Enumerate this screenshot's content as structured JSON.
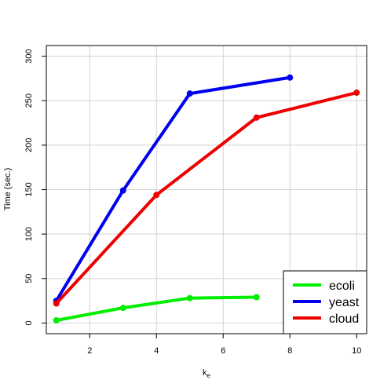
{
  "chart_data": {
    "type": "line",
    "title": "",
    "xlabel": "k",
    "xlabel_subscript": "e",
    "ylabel": "Time (sec.)",
    "xlim": [
      0.7,
      10.3
    ],
    "ylim": [
      -12,
      312
    ],
    "xticks": [
      "2",
      "4",
      "6",
      "8",
      "10"
    ],
    "yticks": [
      "0",
      "50",
      "100",
      "150",
      "200",
      "250",
      "300"
    ],
    "grid": true,
    "legend_position": "bottom-right",
    "series": [
      {
        "name": "ecoli",
        "color": "#00ee00",
        "x": [
          1,
          3,
          5,
          7
        ],
        "y": [
          3,
          17,
          28,
          29
        ]
      },
      {
        "name": "yeast",
        "color": "#0000ee",
        "x": [
          1,
          3,
          5,
          8
        ],
        "y": [
          25,
          149,
          258,
          276
        ]
      },
      {
        "name": "cloud",
        "color": "#ee0000",
        "x": [
          1,
          4,
          7,
          10
        ],
        "y": [
          22,
          144,
          231,
          259
        ]
      }
    ]
  }
}
